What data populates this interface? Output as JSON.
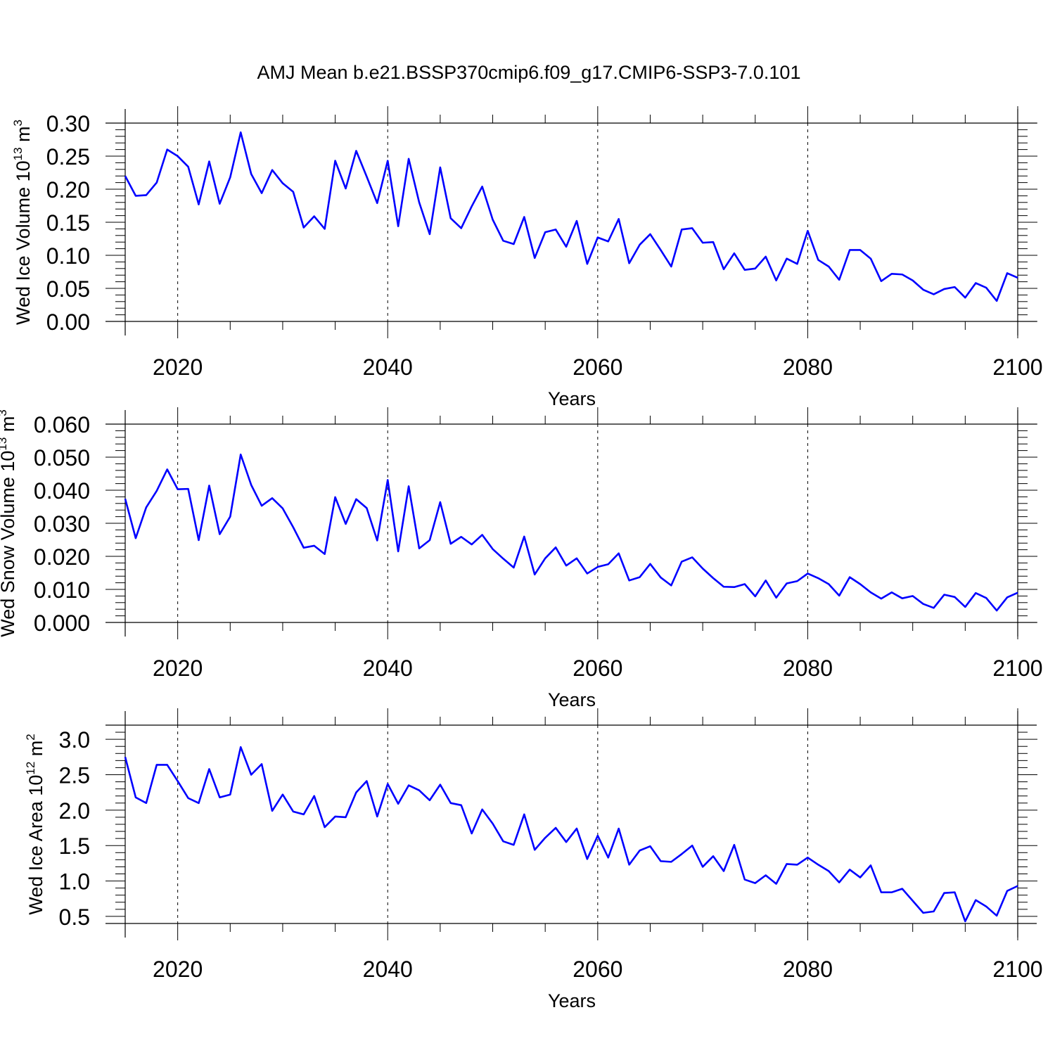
{
  "figure": {
    "title": "AMJ Mean b.e21.BSSP370cmip6.f09_g17.CMIP6-SSP3-7.0.101",
    "line_color": "#0000ff"
  },
  "chart_data": [
    {
      "type": "line",
      "title": "",
      "xlabel": "Years",
      "ylabel_parts": {
        "text": "Wed Ice Volume 10",
        "sup": "13",
        "unit": " m",
        "unit_sup": "3"
      },
      "xlim": [
        2015,
        2100
      ],
      "ylim": [
        0.0,
        0.3
      ],
      "xticks": [
        2020,
        2040,
        2060,
        2080,
        2100
      ],
      "yticks": [
        "0.00",
        "0.05",
        "0.10",
        "0.15",
        "0.20",
        "0.25",
        "0.30"
      ],
      "ytick_values": [
        0.0,
        0.05,
        0.1,
        0.15,
        0.2,
        0.25,
        0.3
      ],
      "x_start": 2015,
      "series": [
        {
          "values": [
            0.22,
            0.19,
            0.191,
            0.21,
            0.26,
            0.25,
            0.234,
            0.177,
            0.242,
            0.178,
            0.218,
            0.286,
            0.223,
            0.194,
            0.229,
            0.209,
            0.196,
            0.142,
            0.159,
            0.14,
            0.243,
            0.201,
            0.258,
            0.219,
            0.179,
            0.243,
            0.144,
            0.246,
            0.18,
            0.132,
            0.233,
            0.156,
            0.141,
            0.174,
            0.204,
            0.154,
            0.122,
            0.117,
            0.158,
            0.096,
            0.135,
            0.139,
            0.113,
            0.152,
            0.087,
            0.127,
            0.121,
            0.155,
            0.088,
            0.116,
            0.132,
            0.108,
            0.083,
            0.139,
            0.141,
            0.119,
            0.12,
            0.079,
            0.103,
            0.078,
            0.08,
            0.098,
            0.062,
            0.095,
            0.087,
            0.137,
            0.093,
            0.083,
            0.063,
            0.108,
            0.108,
            0.095,
            0.061,
            0.072,
            0.071,
            0.062,
            0.048,
            0.041,
            0.049,
            0.052,
            0.036,
            0.058,
            0.051,
            0.031,
            0.073,
            0.066
          ]
        }
      ]
    },
    {
      "type": "line",
      "title": "",
      "xlabel": "Years",
      "ylabel_parts": {
        "text": "Wed Snow Volume 10",
        "sup": "13",
        "unit": " m",
        "unit_sup": "3"
      },
      "xlim": [
        2015,
        2100
      ],
      "ylim": [
        0.0,
        0.06
      ],
      "xticks": [
        2020,
        2040,
        2060,
        2080,
        2100
      ],
      "yticks": [
        "0.000",
        "0.010",
        "0.020",
        "0.030",
        "0.040",
        "0.050",
        "0.060"
      ],
      "ytick_values": [
        0.0,
        0.01,
        0.02,
        0.03,
        0.04,
        0.05,
        0.06
      ],
      "x_start": 2015,
      "series": [
        {
          "values": [
            0.0374,
            0.0255,
            0.0348,
            0.0398,
            0.0463,
            0.0403,
            0.0404,
            0.0249,
            0.0414,
            0.0267,
            0.032,
            0.0508,
            0.0416,
            0.0353,
            0.0376,
            0.0345,
            0.0288,
            0.0226,
            0.0232,
            0.0207,
            0.0379,
            0.0298,
            0.0373,
            0.0346,
            0.0248,
            0.0431,
            0.0215,
            0.0412,
            0.0224,
            0.0249,
            0.0364,
            0.0238,
            0.0259,
            0.0236,
            0.0265,
            0.0222,
            0.0193,
            0.0166,
            0.026,
            0.0145,
            0.0194,
            0.0227,
            0.0172,
            0.0194,
            0.0148,
            0.0168,
            0.0176,
            0.0209,
            0.0127,
            0.0137,
            0.0177,
            0.0136,
            0.0112,
            0.0184,
            0.0197,
            0.0163,
            0.0134,
            0.0108,
            0.0107,
            0.0116,
            0.0079,
            0.0127,
            0.0075,
            0.0118,
            0.0125,
            0.0148,
            0.0134,
            0.0116,
            0.0081,
            0.0137,
            0.0116,
            0.0091,
            0.0072,
            0.0091,
            0.0073,
            0.008,
            0.0056,
            0.0044,
            0.0084,
            0.0077,
            0.0047,
            0.0089,
            0.0074,
            0.0036,
            0.0076,
            0.009
          ]
        }
      ]
    },
    {
      "type": "line",
      "title": "",
      "xlabel": "Years",
      "ylabel_parts": {
        "text": "Wed Ice Area 10",
        "sup": "12",
        "unit": " m",
        "unit_sup": "2"
      },
      "xlim": [
        2015,
        2100
      ],
      "ylim": [
        0.4,
        3.2
      ],
      "xticks": [
        2020,
        2040,
        2060,
        2080,
        2100
      ],
      "yticks": [
        "0.5",
        "1.0",
        "1.5",
        "2.0",
        "2.5",
        "3.0"
      ],
      "ytick_values": [
        0.5,
        1.0,
        1.5,
        2.0,
        2.5,
        3.0
      ],
      "x_start": 2015,
      "series": [
        {
          "values": [
            2.75,
            2.18,
            2.1,
            2.64,
            2.64,
            2.41,
            2.17,
            2.1,
            2.58,
            2.18,
            2.22,
            2.89,
            2.5,
            2.65,
            1.99,
            2.22,
            1.98,
            1.94,
            2.2,
            1.76,
            1.91,
            1.9,
            2.25,
            2.41,
            1.91,
            2.37,
            2.09,
            2.35,
            2.28,
            2.14,
            2.36,
            2.1,
            2.07,
            1.67,
            2.01,
            1.81,
            1.56,
            1.51,
            1.94,
            1.44,
            1.61,
            1.75,
            1.55,
            1.74,
            1.31,
            1.64,
            1.33,
            1.74,
            1.23,
            1.43,
            1.49,
            1.28,
            1.27,
            1.38,
            1.5,
            1.2,
            1.35,
            1.14,
            1.51,
            1.02,
            0.97,
            1.08,
            0.96,
            1.24,
            1.23,
            1.33,
            1.23,
            1.14,
            0.98,
            1.16,
            1.05,
            1.22,
            0.84,
            0.84,
            0.89,
            0.72,
            0.55,
            0.57,
            0.83,
            0.84,
            0.43,
            0.73,
            0.64,
            0.51,
            0.86,
            0.93
          ]
        }
      ]
    }
  ]
}
